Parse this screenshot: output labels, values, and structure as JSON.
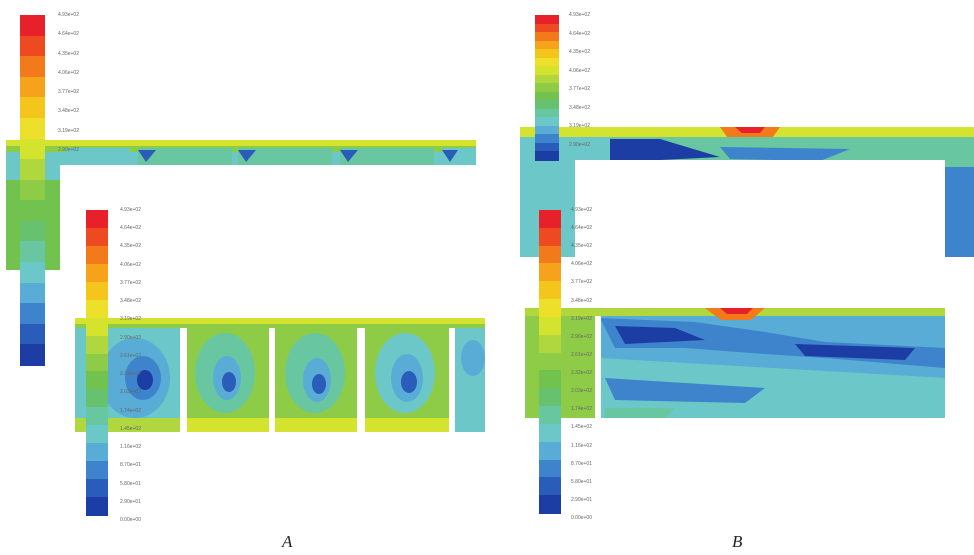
{
  "colormap": [
    "#e8202a",
    "#ee4a22",
    "#f27a1a",
    "#f6a21a",
    "#f4c61c",
    "#eee02a",
    "#d4e42e",
    "#b0d83e",
    "#8ecc48",
    "#72c250",
    "#66c26e",
    "#68c6a0",
    "#6cc8c8",
    "#58acd6",
    "#3e84cc",
    "#2a5cba",
    "#1c3da4"
  ],
  "legend_ticks_A": [
    "4.93e+02",
    "4.64e+02",
    "4.35e+02",
    "4.06e+02",
    "3.77e+02",
    "3.48e+02",
    "3.19e+02",
    "2.90e+02",
    "2.61e+02",
    "2.32e+02",
    "2.03e+02",
    "1.74e+02",
    "1.45e+02",
    "1.16e+02",
    "8.70e+01",
    "5.80e+01",
    "2.90e+01",
    "0.00e+00"
  ],
  "legend_ticks_B": [
    "4.93e+02",
    "4.64e+02",
    "4.35e+02",
    "4.06e+02",
    "3.77e+02",
    "3.48e+02",
    "3.19e+02",
    "2.90e+02",
    "2.61e+02",
    "2.32e+02",
    "2.03e+02",
    "1.74e+02",
    "1.45e+02",
    "1.16e+02",
    "8.70e+01",
    "5.80e+01",
    "2.90e+01",
    "0.00e+00"
  ],
  "captions": {
    "a": "A",
    "b": "B"
  }
}
